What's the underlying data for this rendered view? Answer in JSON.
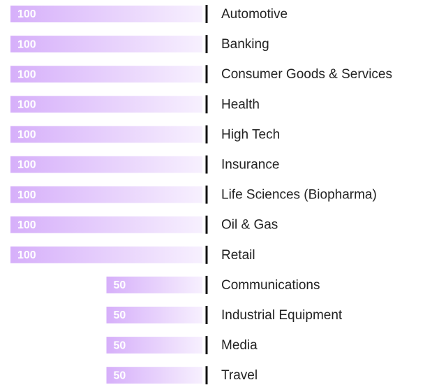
{
  "chart_data": {
    "type": "bar",
    "orientation": "horizontal-left",
    "categories": [
      "Automotive",
      "Banking",
      "Consumer Goods & Services",
      "Health",
      "High Tech",
      "Insurance",
      "Life Sciences (Biopharma)",
      "Oil & Gas",
      "Retail",
      "Communications",
      "Industrial Equipment",
      "Media",
      "Travel"
    ],
    "values": [
      100,
      100,
      100,
      100,
      100,
      100,
      100,
      100,
      100,
      50,
      50,
      50,
      50
    ],
    "color": "#d6affa",
    "xlim": [
      0,
      100
    ]
  }
}
